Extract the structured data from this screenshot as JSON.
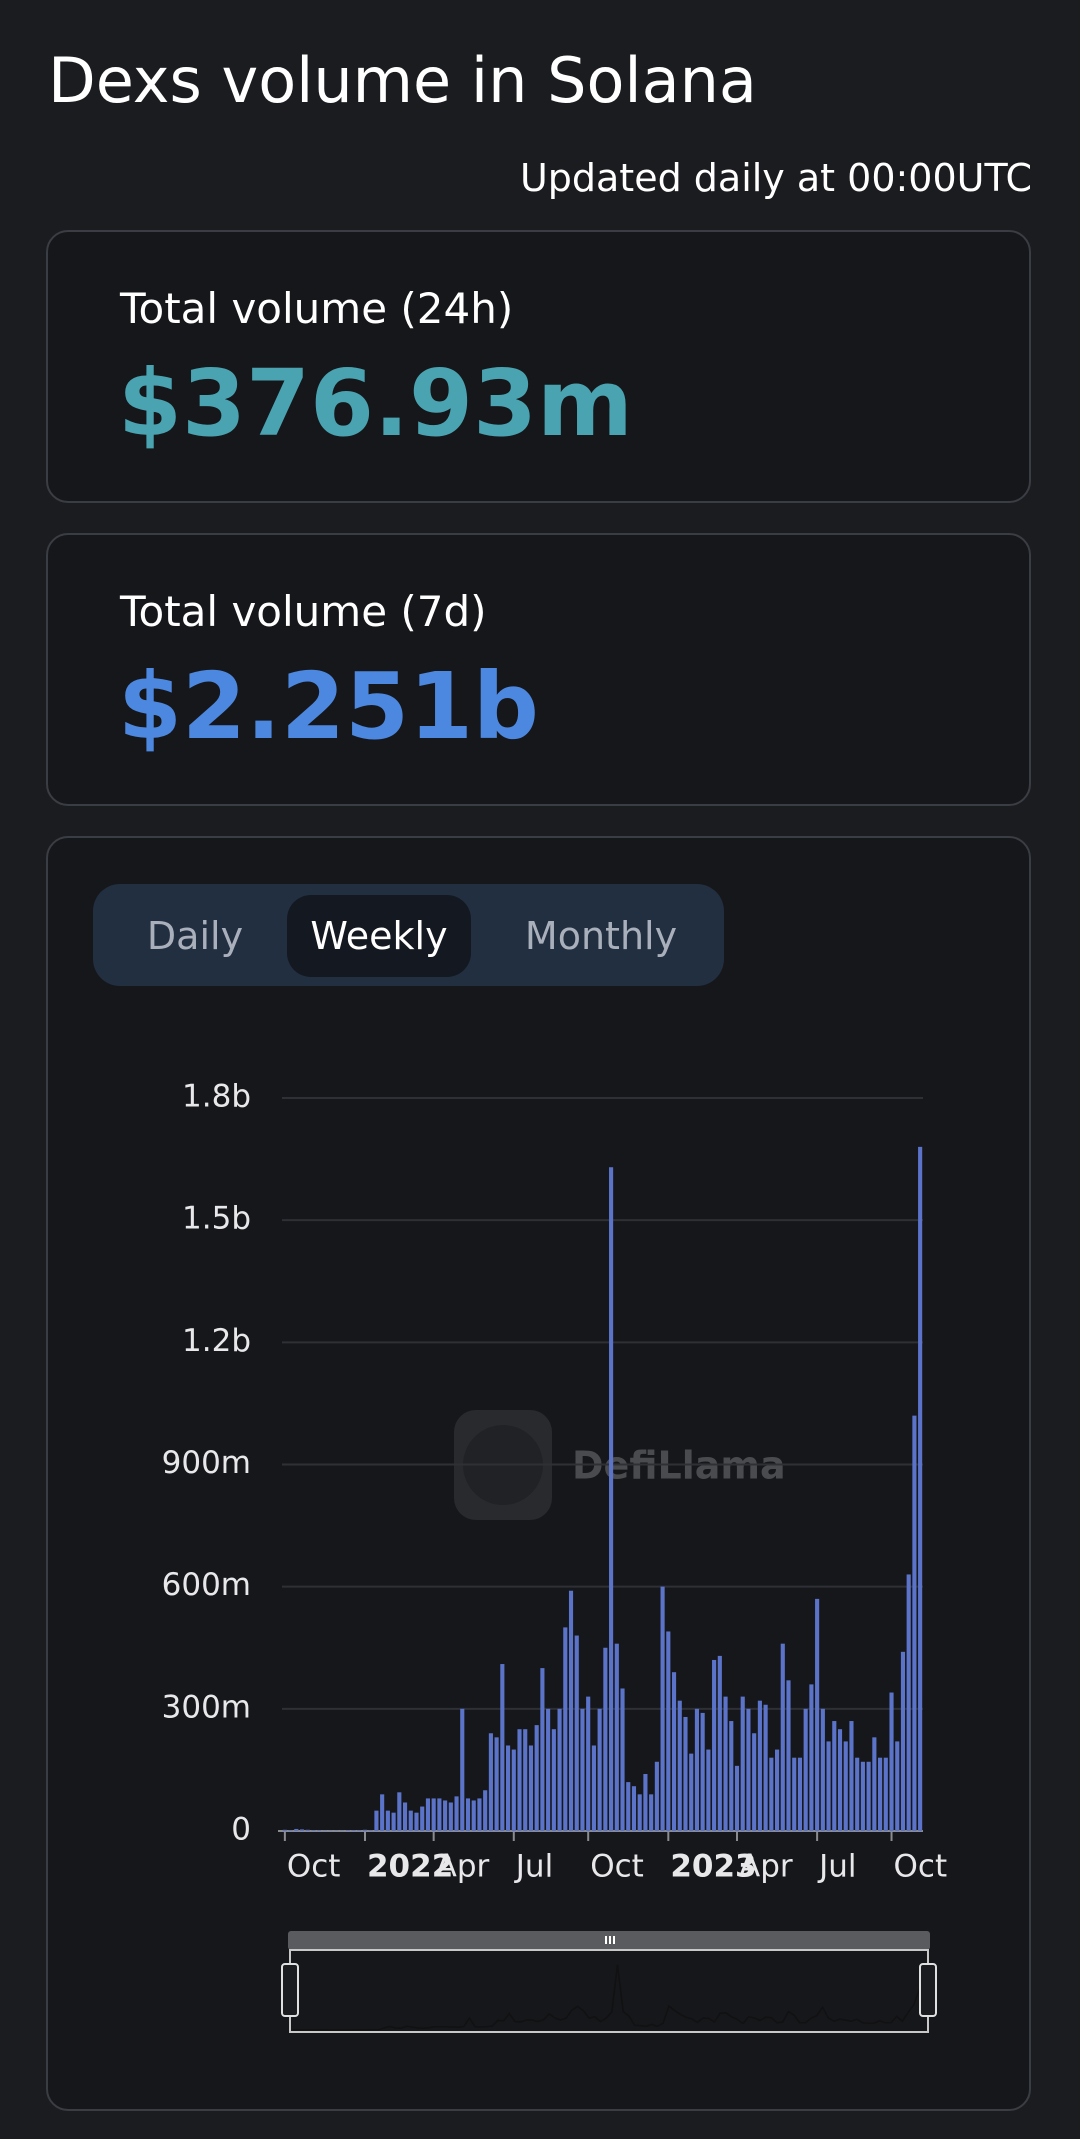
{
  "header": {
    "title": "Dexs volume in Solana",
    "subtitle": "Updated daily at 00:00UTC"
  },
  "cards": [
    {
      "label": "Total volume (24h)",
      "value": "$376.93m"
    },
    {
      "label": "Total volume (7d)",
      "value": "$2.251b"
    }
  ],
  "tabs": [
    "Daily",
    "Weekly",
    "Monthly"
  ],
  "selected_tab": "Weekly",
  "watermark": "DefiLlama",
  "chart_data": {
    "type": "bar",
    "color": "#5b74c9",
    "grid": true,
    "ylim": [
      0,
      1800
    ],
    "yticks": [
      0,
      {
        "value": 300,
        "label": "300m"
      },
      {
        "value": 600,
        "label": "600m"
      },
      {
        "value": 900,
        "label": "900m"
      },
      {
        "value": 1200,
        "label": "1.2b"
      },
      {
        "value": 1500,
        "label": "1.5b"
      },
      {
        "value": 1800,
        "label": "1.8b"
      }
    ],
    "categories": [
      "Oct",
      null,
      null,
      null,
      null,
      null,
      null,
      null,
      null,
      null,
      null,
      null,
      null,
      null,
      "2022",
      null,
      null,
      null,
      null,
      null,
      null,
      null,
      null,
      null,
      null,
      null,
      "Apr",
      null,
      null,
      null,
      null,
      null,
      null,
      null,
      null,
      null,
      null,
      null,
      null,
      null,
      "Jul",
      null,
      null,
      null,
      null,
      null,
      null,
      null,
      null,
      null,
      null,
      null,
      null,
      "Oct",
      null,
      null,
      null,
      null,
      null,
      null,
      null,
      null,
      null,
      null,
      null,
      null,
      null,
      "2023",
      null,
      null,
      null,
      null,
      null,
      null,
      null,
      null,
      null,
      null,
      null,
      "Apr",
      null,
      null,
      null,
      null,
      null,
      null,
      null,
      null,
      null,
      null,
      null,
      null,
      null,
      "Jul",
      null,
      null,
      null,
      null,
      null,
      null,
      null,
      null,
      null,
      null,
      null,
      null,
      "Oct",
      null,
      null,
      null,
      null,
      null
    ],
    "values": [
      3,
      2,
      5,
      4,
      3,
      2,
      2,
      1,
      1,
      1,
      1,
      2,
      2,
      2,
      3,
      2,
      50,
      90,
      50,
      45,
      95,
      70,
      50,
      45,
      60,
      80,
      80,
      80,
      75,
      70,
      85,
      300,
      80,
      75,
      80,
      100,
      240,
      230,
      410,
      210,
      200,
      250,
      250,
      210,
      260,
      400,
      300,
      250,
      300,
      500,
      590,
      480,
      300,
      330,
      210,
      300,
      450,
      1630,
      460,
      350,
      120,
      110,
      90,
      140,
      90,
      170,
      600,
      490,
      390,
      320,
      280,
      190,
      300,
      290,
      200,
      420,
      430,
      330,
      270,
      160,
      330,
      300,
      240,
      320,
      310,
      180,
      200,
      460,
      370,
      180,
      180,
      300,
      360,
      570,
      300,
      220,
      270,
      250,
      220,
      270,
      180,
      170,
      170,
      230,
      180,
      180,
      340,
      220,
      440,
      630,
      1020,
      1680
    ]
  }
}
